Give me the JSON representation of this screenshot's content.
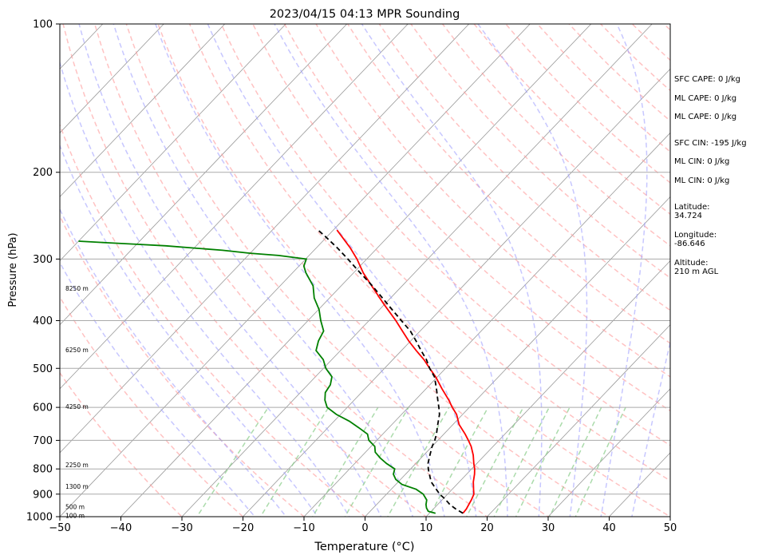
{
  "chart_data": {
    "type": "skew-t",
    "title": "2023/04/15 04:13 MPR Sounding",
    "xlabel": "Temperature (°C)",
    "ylabel": "Pressure (hPa)",
    "xlim": [
      -50,
      50
    ],
    "ylim": [
      1000,
      100
    ],
    "y_scale": "log",
    "x_ticks": [
      -50,
      -40,
      -30,
      -20,
      -10,
      0,
      10,
      20,
      30,
      40,
      50
    ],
    "x_tick_labels": [
      "−50",
      "−40",
      "−30",
      "−20",
      "−10",
      "0",
      "10",
      "20",
      "30",
      "40",
      "50"
    ],
    "y_ticks": [
      1000,
      900,
      800,
      700,
      600,
      500,
      400,
      300,
      200,
      100
    ],
    "y_tick_labels": [
      "1000",
      "900",
      "800",
      "700",
      "600",
      "500",
      "400",
      "300",
      "200",
      "100"
    ],
    "grid": true,
    "colors": {
      "temperature": "#ff0000",
      "dewpoint": "#008000",
      "parcel": "#000000",
      "dry_adiabats": "#ff9999",
      "moist_adiabats": "#9999ff",
      "mixing_ratio": "#88cc88",
      "isotherms": "#999999"
    },
    "series": [
      {
        "id": "temperature",
        "pressure": [
          984,
          965,
          945,
          925,
          900,
          880,
          850,
          820,
          800,
          780,
          750,
          720,
          700,
          680,
          650,
          620,
          600,
          580,
          550,
          520,
          500,
          480,
          460,
          440,
          420,
          400,
          370,
          340,
          320,
          300,
          285,
          270,
          262
        ],
        "temp": [
          15.5,
          15.4,
          15.1,
          14.8,
          14.3,
          13.5,
          12.3,
          11.3,
          10.5,
          9.5,
          8.1,
          6.4,
          5.0,
          3.5,
          1.0,
          -1.0,
          -2.8,
          -4.5,
          -7.4,
          -10.3,
          -12.6,
          -14.9,
          -17.6,
          -20.3,
          -22.9,
          -25.6,
          -30.2,
          -35.0,
          -38.4,
          -41.6,
          -44.4,
          -47.6,
          -49.4
        ]
      },
      {
        "id": "dewpoint",
        "pressure": [
          984,
          975,
          960,
          945,
          925,
          900,
          880,
          860,
          840,
          820,
          800,
          780,
          760,
          740,
          720,
          700,
          680,
          660,
          640,
          620,
          600,
          580,
          560,
          540,
          520,
          500,
          480,
          460,
          440,
          420,
          400,
          380,
          360,
          340,
          320,
          310,
          300,
          295,
          292,
          288,
          285,
          282,
          280,
          278,
          276
        ],
        "temp": [
          11.0,
          9.5,
          8.7,
          8.1,
          7.5,
          6.0,
          4.1,
          1.0,
          -0.8,
          -2.0,
          -2.6,
          -4.8,
          -6.7,
          -8.4,
          -9.4,
          -11.3,
          -12.5,
          -14.9,
          -17.5,
          -20.7,
          -23.3,
          -24.8,
          -25.9,
          -26.3,
          -27.3,
          -29.6,
          -31.4,
          -34.0,
          -35.1,
          -35.8,
          -37.9,
          -39.9,
          -42.5,
          -44.6,
          -47.8,
          -49.2,
          -49.9,
          -55.0,
          -60.0,
          -65.0,
          -70.0,
          -75.0,
          -80.0,
          -85.0,
          -90.0
        ]
      },
      {
        "id": "parcel",
        "pressure": [
          984,
          965,
          945,
          920,
          900,
          880,
          850,
          820,
          800,
          780,
          750,
          720,
          700,
          680,
          650,
          620,
          600,
          580,
          550,
          520,
          500,
          480,
          460,
          440,
          420,
          400,
          370,
          340,
          320,
          300,
          285,
          270,
          262
        ],
        "temp": [
          15.5,
          13.7,
          12.0,
          10.3,
          8.7,
          7.4,
          5.4,
          3.9,
          2.9,
          2.0,
          1.0,
          0.0,
          -0.5,
          -1.2,
          -2.5,
          -3.8,
          -5.0,
          -6.3,
          -8.3,
          -10.5,
          -12.6,
          -14.5,
          -16.8,
          -19.1,
          -21.6,
          -24.7,
          -29.6,
          -34.9,
          -38.9,
          -43.1,
          -46.5,
          -50.3,
          -52.5
        ]
      }
    ],
    "height_labels": [
      {
        "pressure": 994,
        "label": "100 m"
      },
      {
        "pressure": 954,
        "label": "500 m"
      },
      {
        "pressure": 867,
        "label": "1300 m"
      },
      {
        "pressure": 785,
        "label": "2250 m"
      },
      {
        "pressure": 598,
        "label": "4250 m"
      },
      {
        "pressure": 458,
        "label": "6250 m"
      },
      {
        "pressure": 344,
        "label": "8250 m"
      }
    ],
    "annotations": [
      {
        "text": "SFC CAPE: 0 J/kg"
      },
      {
        "text": "ML CAPE: 0 J/kg"
      },
      {
        "text": "ML CAPE: 0 J/kg"
      },
      {
        "text": "SFC CIN: -195 J/kg"
      },
      {
        "text": "ML CIN: 0 J/kg"
      },
      {
        "text": "ML CIN: 0 J/kg"
      },
      {
        "text": "Latitude:\n34.724"
      },
      {
        "text": "Longitude:\n-86.646"
      },
      {
        "text": "Altitude:\n210 m AGL"
      }
    ]
  }
}
